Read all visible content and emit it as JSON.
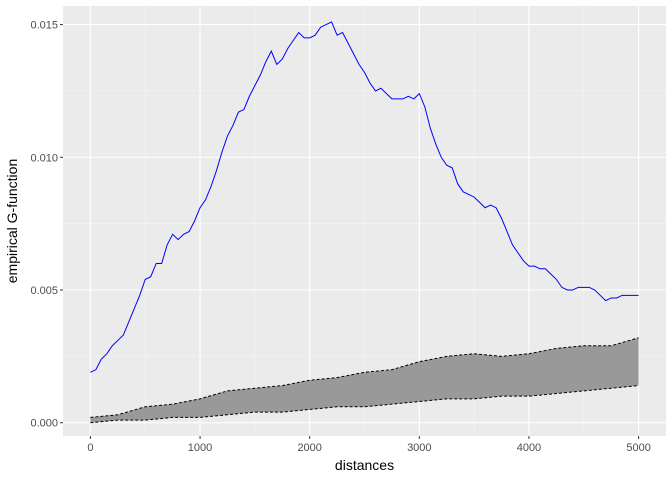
{
  "chart_data": {
    "type": "line",
    "title": "",
    "xlabel": "distances",
    "ylabel": "empirical G-function",
    "xlim": [
      -250,
      5250
    ],
    "ylim": [
      -0.0005,
      0.0157
    ],
    "x_ticks": [
      0,
      1000,
      2000,
      3000,
      4000,
      5000
    ],
    "x_tick_labels": [
      "0",
      "1000",
      "2000",
      "3000",
      "4000",
      "5000"
    ],
    "y_ticks": [
      0.0,
      0.005,
      0.01,
      0.015
    ],
    "y_tick_labels": [
      "0.000",
      "0.005",
      "0.010",
      "0.015"
    ],
    "grid": true,
    "background": "#ebebeb",
    "series": [
      {
        "kind": "line",
        "color": "#0000ff",
        "x": [
          0,
          50,
          100,
          150,
          200,
          250,
          300,
          350,
          400,
          450,
          500,
          550,
          600,
          650,
          700,
          750,
          800,
          850,
          900,
          950,
          1000,
          1050,
          1100,
          1150,
          1200,
          1250,
          1300,
          1350,
          1400,
          1450,
          1500,
          1550,
          1600,
          1650,
          1700,
          1750,
          1800,
          1850,
          1900,
          1950,
          2000,
          2050,
          2100,
          2150,
          2200,
          2250,
          2300,
          2350,
          2400,
          2450,
          2500,
          2550,
          2600,
          2650,
          2700,
          2750,
          2800,
          2850,
          2900,
          2950,
          3000,
          3050,
          3100,
          3150,
          3200,
          3250,
          3300,
          3350,
          3400,
          3450,
          3500,
          3550,
          3600,
          3650,
          3700,
          3750,
          3800,
          3850,
          3900,
          3950,
          4000,
          4050,
          4100,
          4150,
          4200,
          4250,
          4300,
          4350,
          4400,
          4450,
          4500,
          4550,
          4600,
          4650,
          4700,
          4750,
          4800,
          4850,
          4900,
          4950,
          5000
        ],
        "values": [
          0.0019,
          0.002,
          0.0024,
          0.0026,
          0.0029,
          0.0031,
          0.0033,
          0.0038,
          0.0043,
          0.0048,
          0.0054,
          0.0055,
          0.006,
          0.006,
          0.0067,
          0.0071,
          0.0069,
          0.0071,
          0.0072,
          0.0076,
          0.0081,
          0.0084,
          0.0089,
          0.0095,
          0.0102,
          0.0108,
          0.0112,
          0.0117,
          0.0118,
          0.0123,
          0.0127,
          0.0131,
          0.0136,
          0.014,
          0.0135,
          0.0137,
          0.0141,
          0.0144,
          0.0147,
          0.0145,
          0.0145,
          0.0146,
          0.0149,
          0.015,
          0.0151,
          0.0146,
          0.0147,
          0.0143,
          0.0139,
          0.0135,
          0.0132,
          0.0128,
          0.0125,
          0.0126,
          0.0124,
          0.0122,
          0.0122,
          0.0122,
          0.0123,
          0.0122,
          0.0124,
          0.0119,
          0.0111,
          0.0105,
          0.01,
          0.0097,
          0.0096,
          0.009,
          0.0087,
          0.0086,
          0.0085,
          0.0083,
          0.0081,
          0.0082,
          0.0081,
          0.0077,
          0.0072,
          0.0067,
          0.0064,
          0.0061,
          0.0059,
          0.0059,
          0.0058,
          0.0058,
          0.0056,
          0.0054,
          0.0051,
          0.005,
          0.005,
          0.0051,
          0.0051,
          0.0051,
          0.005,
          0.0048,
          0.0046,
          0.0047,
          0.0047,
          0.0048,
          0.0048,
          0.0048,
          0.0048
        ]
      },
      {
        "kind": "band",
        "fill": "#999999",
        "edge": "#000000",
        "x": [
          0,
          250,
          500,
          750,
          1000,
          1250,
          1500,
          1750,
          2000,
          2250,
          2500,
          2750,
          3000,
          3250,
          3500,
          3750,
          4000,
          4250,
          4500,
          4750,
          5000
        ],
        "lower": [
          0.0,
          0.0001,
          0.0001,
          0.0002,
          0.0002,
          0.0003,
          0.0004,
          0.0004,
          0.0005,
          0.0006,
          0.0006,
          0.0007,
          0.0008,
          0.0009,
          0.0009,
          0.001,
          0.001,
          0.0011,
          0.0012,
          0.0013,
          0.0014
        ],
        "upper": [
          0.0002,
          0.0003,
          0.0006,
          0.0007,
          0.0009,
          0.0012,
          0.0013,
          0.0014,
          0.0016,
          0.0017,
          0.0019,
          0.002,
          0.0023,
          0.0025,
          0.0026,
          0.0025,
          0.0026,
          0.0028,
          0.0029,
          0.0029,
          0.0032
        ]
      }
    ]
  }
}
